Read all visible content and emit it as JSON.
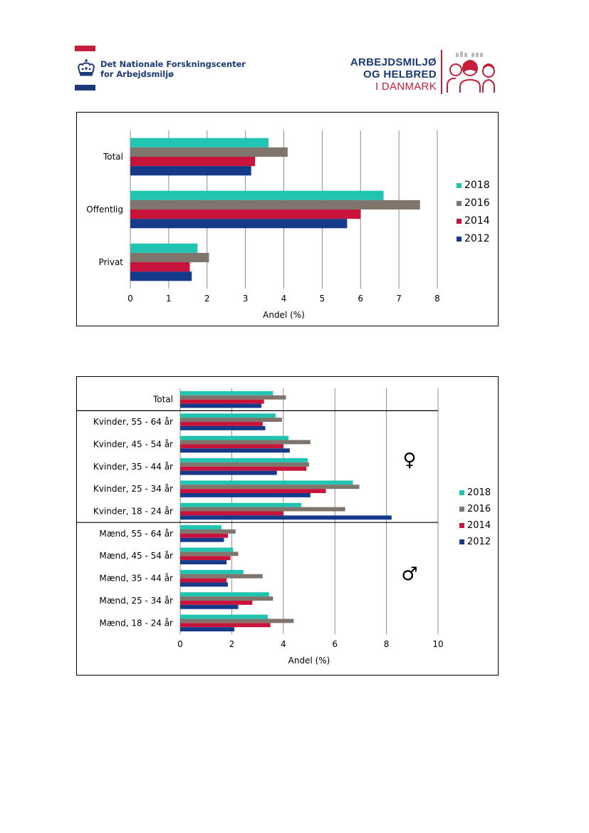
{
  "header": {
    "left_logo": {
      "line1": "Det Nationale Forskningscenter",
      "line2": "for Arbejdsmiljø"
    },
    "right_logo": {
      "line1": "ARBEJDSMILJØ",
      "line2": "OG HELBRED",
      "line3": "I DANMARK"
    }
  },
  "colors": {
    "2018": "#20c4b0",
    "2016": "#7f756c",
    "2014": "#c8143c",
    "2012": "#163a8a",
    "brand_blue": "#1b3a7a",
    "brand_red": "#c41e3a"
  },
  "chart_data": [
    {
      "type": "bar",
      "orientation": "horizontal",
      "categories": [
        "Total",
        "Offentlig",
        "Privat"
      ],
      "series": [
        {
          "name": "2018",
          "values": [
            3.6,
            6.6,
            1.75
          ]
        },
        {
          "name": "2016",
          "values": [
            4.1,
            7.55,
            2.05
          ]
        },
        {
          "name": "2014",
          "values": [
            3.25,
            6.0,
            1.55
          ]
        },
        {
          "name": "2012",
          "values": [
            3.15,
            5.65,
            1.6
          ]
        }
      ],
      "xlabel": "Andel (%)",
      "xlim": [
        0,
        8
      ],
      "xticks": [
        0,
        1,
        2,
        3,
        4,
        5,
        6,
        7,
        8
      ],
      "grid": "vertical",
      "legend": "right"
    },
    {
      "type": "bar",
      "orientation": "horizontal",
      "categories": [
        "Total",
        "Kvinder, 55 - 64 år",
        "Kvinder, 45 - 54 år",
        "Kvinder, 35 - 44 år",
        "Kvinder, 25 - 34 år",
        "Kvinder, 18 - 24 år",
        "Mænd, 55 - 64 år",
        "Mænd, 45 - 54 år",
        "Mænd, 35 - 44 år",
        "Mænd, 25 - 34 år",
        "Mænd, 18 - 24 år"
      ],
      "series": [
        {
          "name": "2018",
          "values": [
            3.6,
            3.7,
            4.2,
            4.95,
            6.7,
            4.7,
            1.6,
            2.05,
            2.45,
            3.45,
            3.4
          ]
        },
        {
          "name": "2016",
          "values": [
            4.1,
            3.95,
            5.05,
            5.0,
            6.95,
            6.4,
            2.15,
            2.25,
            3.2,
            3.6,
            4.4
          ]
        },
        {
          "name": "2014",
          "values": [
            3.25,
            3.2,
            4.0,
            4.9,
            5.65,
            4.0,
            1.85,
            1.95,
            1.8,
            2.8,
            3.5
          ]
        },
        {
          "name": "2012",
          "values": [
            3.15,
            3.3,
            4.25,
            3.75,
            5.05,
            8.2,
            1.7,
            1.8,
            1.85,
            2.25,
            2.1
          ]
        }
      ],
      "xlabel": "Andel (%)",
      "xlim": [
        0,
        10
      ],
      "xticks": [
        0,
        2,
        4,
        6,
        8,
        10
      ],
      "grid": "vertical",
      "legend": "right",
      "separators_after": [
        0,
        5
      ],
      "group_symbols": [
        {
          "after_group": "Kvinder",
          "symbol": "♀"
        },
        {
          "after_group": "Mænd",
          "symbol": "♂"
        }
      ]
    }
  ]
}
